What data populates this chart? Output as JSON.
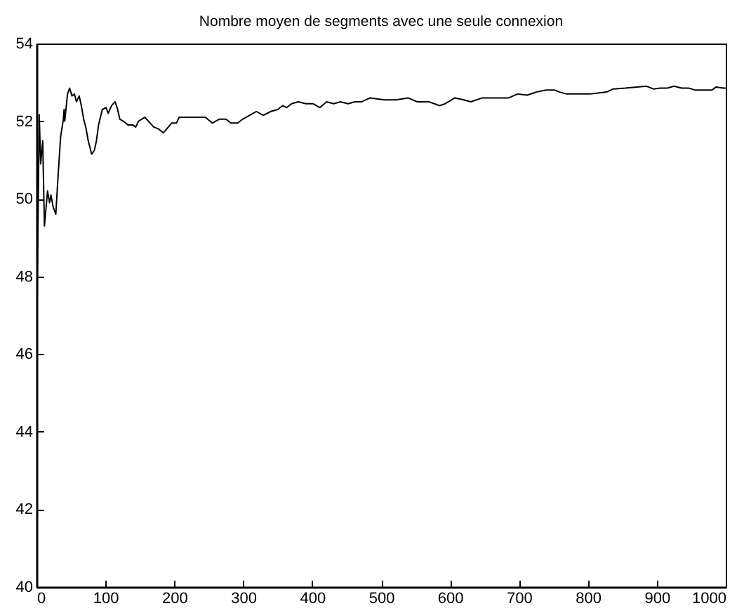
{
  "chart_data": {
    "type": "line",
    "title": "Nombre moyen de segments avec une seule connexion",
    "x": [
      1,
      4,
      6,
      9,
      11.5,
      16,
      19,
      21,
      24,
      28,
      31,
      35,
      39,
      40,
      41,
      45,
      48,
      51.5,
      55,
      58,
      62,
      65,
      68.5,
      72,
      75,
      80,
      84,
      87,
      90,
      95.5,
      101,
      104,
      109,
      114,
      117,
      121,
      126,
      133,
      140,
      144,
      148,
      157,
      165,
      170,
      177,
      184,
      189,
      196,
      203,
      207,
      214,
      224,
      235,
      245,
      255,
      265,
      275,
      282,
      292,
      299,
      309,
      319,
      329,
      340,
      350,
      357,
      363,
      370,
      380,
      391,
      401,
      411,
      421,
      431,
      441,
      452,
      462,
      472,
      484,
      505,
      522,
      539,
      552,
      569,
      585,
      593,
      607,
      620,
      630,
      647,
      664,
      685,
      698,
      712,
      725,
      739,
      752,
      759,
      769,
      786,
      803,
      817,
      827,
      837,
      854,
      871,
      885,
      895,
      905,
      915,
      925,
      936,
      946,
      956,
      969,
      980,
      986,
      997,
      1000
    ],
    "series": [
      {
        "color": "#000000",
        "values": [
          47.5,
          52.17,
          50.9,
          51.5,
          49.3,
          50.2,
          49.9,
          50.1,
          49.8,
          49.6,
          50.5,
          51.6,
          52.05,
          52.3,
          52.0,
          52.7,
          52.85,
          52.65,
          52.7,
          52.5,
          52.65,
          52.4,
          52.05,
          51.8,
          51.5,
          51.15,
          51.25,
          51.5,
          51.9,
          52.3,
          52.35,
          52.2,
          52.4,
          52.5,
          52.35,
          52.05,
          52.0,
          51.9,
          51.9,
          51.85,
          52.0,
          52.1,
          51.95,
          51.85,
          51.8,
          51.7,
          51.8,
          51.95,
          51.95,
          52.1,
          52.1,
          52.1,
          52.1,
          52.1,
          51.95,
          52.05,
          52.05,
          51.95,
          51.95,
          52.05,
          52.15,
          52.25,
          52.15,
          52.25,
          52.3,
          52.4,
          52.35,
          52.45,
          52.5,
          52.45,
          52.45,
          52.35,
          52.5,
          52.45,
          52.5,
          52.45,
          52.5,
          52.5,
          52.6,
          52.55,
          52.55,
          52.6,
          52.5,
          52.5,
          52.4,
          52.45,
          52.6,
          52.55,
          52.5,
          52.6,
          52.6,
          52.6,
          52.7,
          52.67,
          52.75,
          52.8,
          52.8,
          52.75,
          52.7,
          52.7,
          52.7,
          52.73,
          52.75,
          52.83,
          52.85,
          52.88,
          52.9,
          52.83,
          52.85,
          52.85,
          52.9,
          52.85,
          52.85,
          52.8,
          52.8,
          52.8,
          52.88,
          52.85,
          52.85
        ]
      }
    ],
    "xlim": [
      0,
      1000
    ],
    "xticks": [
      0,
      100,
      200,
      300,
      400,
      500,
      600,
      700,
      800,
      900,
      1000
    ],
    "ylim": [
      40,
      54
    ],
    "yticks": [
      40,
      42,
      44,
      46,
      48,
      50,
      52,
      54
    ]
  }
}
